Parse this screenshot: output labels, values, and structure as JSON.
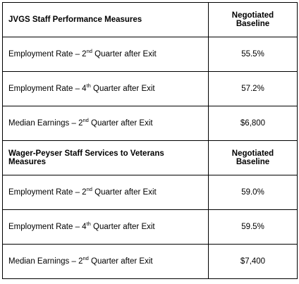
{
  "sections": [
    {
      "header": {
        "title": "JVGS Staff Performance Measures",
        "baseline": "Negotiated Baseline"
      },
      "rows": [
        {
          "label": {
            "text": "Employment Rate – 2",
            "sup": "nd",
            "rest": " Quarter after Exit"
          },
          "value": "55.5%"
        },
        {
          "label": {
            "text": "Employment Rate – 4",
            "sup": "th",
            "rest": " Quarter after Exit"
          },
          "value": "57.2%"
        },
        {
          "label": {
            "text": "Median Earnings – 2",
            "sup": "nd",
            "rest": " Quarter after Exit"
          },
          "value": "$6,800"
        }
      ]
    },
    {
      "header": {
        "title": "Wager-Peyser Staff Services to Veterans Measures",
        "baseline": "Negotiated Baseline"
      },
      "rows": [
        {
          "label": {
            "text": "Employment Rate – 2",
            "sup": "nd",
            "rest": " Quarter after Exit"
          },
          "value": "59.0%"
        },
        {
          "label": {
            "text": "Employment Rate – 4",
            "sup": "th",
            "rest": " Quarter after Exit"
          },
          "value": "59.5%"
        },
        {
          "label": {
            "text": "Median Earnings – 2",
            "sup": "nd",
            "rest": " Quarter after Exit"
          },
          "value": "$7,400"
        }
      ]
    }
  ]
}
